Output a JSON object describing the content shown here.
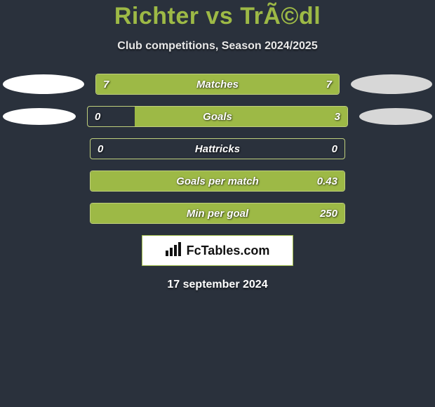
{
  "colors": {
    "background": "#2a313c",
    "accent": "#9db946",
    "bar_border": "#bfcf7c",
    "ellipse_left": "#ffffff",
    "ellipse_right": "#d7d7d7",
    "text_light": "#ffffff"
  },
  "header": {
    "title": "Richter vs TrÃ©dl",
    "subtitle": "Club competitions, Season 2024/2025"
  },
  "rows": [
    {
      "label": "Matches",
      "left_value": "7",
      "right_value": "7",
      "left_fill_pct": 50,
      "right_fill_pct": 50,
      "show_ellipse": true,
      "ellipse_small": false
    },
    {
      "label": "Goals",
      "left_value": "0",
      "right_value": "3",
      "left_fill_pct": 0,
      "right_fill_pct": 82,
      "show_ellipse": true,
      "ellipse_small": true
    },
    {
      "label": "Hattricks",
      "left_value": "0",
      "right_value": "0",
      "left_fill_pct": 0,
      "right_fill_pct": 0,
      "show_ellipse": false,
      "ellipse_small": false
    },
    {
      "label": "Goals per match",
      "left_value": "",
      "right_value": "0.43",
      "left_fill_pct": 0,
      "right_fill_pct": 100,
      "show_ellipse": false,
      "ellipse_small": false
    },
    {
      "label": "Min per goal",
      "left_value": "",
      "right_value": "250",
      "left_fill_pct": 0,
      "right_fill_pct": 100,
      "show_ellipse": false,
      "ellipse_small": false
    }
  ],
  "footer": {
    "brand": "FcTables.com",
    "date": "17 september 2024"
  },
  "typography": {
    "title_fontsize": 34,
    "subtitle_fontsize": 16,
    "bar_label_fontsize": 15,
    "date_fontsize": 16
  }
}
